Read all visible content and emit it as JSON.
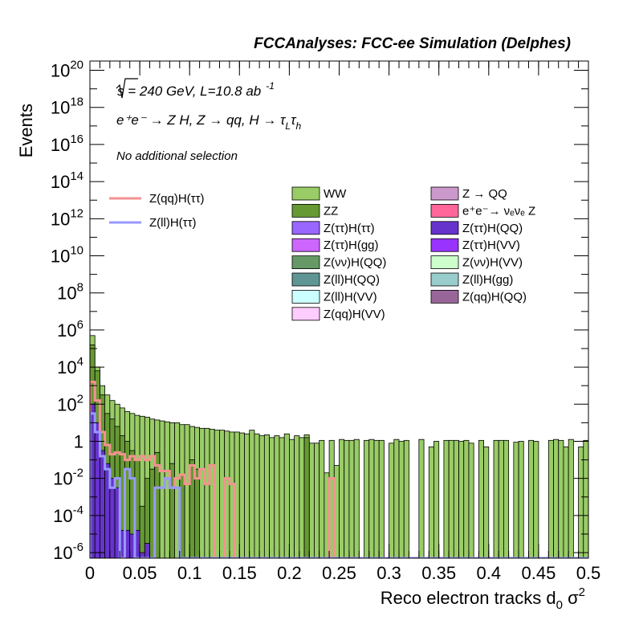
{
  "chart_data": {
    "type": "histogram",
    "title": "FCCAnalyses: FCC-ee Simulation (Delphes)",
    "annotations": {
      "energy_prefix": "s",
      "energy_text": " = 240 GeV, L=10.8 ab",
      "lumi_exp": "-1",
      "process_text": "e⁺e⁻ → Z H, Z → qq, H → τ",
      "process_sub1": "L",
      "process_mid": "τ",
      "process_sub2": "h",
      "selection": "No additional selection"
    },
    "xlabel": "Reco electron tracks d",
    "xlabel_sub": "0",
    "xlabel_tail": " σ",
    "xlabel_sup": "2",
    "ylabel": "Events",
    "xlim": [
      0,
      0.5
    ],
    "ylog_range": [
      -6.3,
      20.5
    ],
    "y_scale": "log",
    "x_ticks": [
      "0",
      "0.05",
      "0.1",
      "0.15",
      "0.2",
      "0.25",
      "0.3",
      "0.35",
      "0.4",
      "0.45",
      "0.5"
    ],
    "y_tick_exponents": [
      -6,
      -4,
      -2,
      0,
      2,
      4,
      6,
      8,
      10,
      12,
      14,
      16,
      18,
      20
    ],
    "legend_placement": "top-right",
    "signal_legend": [
      {
        "name": "Z(qq)H(ττ)",
        "color": "#f59191"
      },
      {
        "name": "Z(ll)H(ττ)",
        "color": "#9999ff"
      }
    ],
    "background_legend_col1": [
      {
        "name": "WW",
        "color": "#99cc66"
      },
      {
        "name": "ZZ",
        "color": "#669933"
      },
      {
        "name": "Z(ττ)H(ττ)",
        "color": "#9966ff"
      },
      {
        "name": "Z(ττ)H(gg)",
        "color": "#cc66ff"
      },
      {
        "name": "Z(νν)H(QQ)",
        "color": "#669966"
      },
      {
        "name": "Z(ll)H(QQ)",
        "color": "#5f9595"
      },
      {
        "name": "Z(ll)H(VV)",
        "color": "#ccffff"
      },
      {
        "name": "Z(qq)H(VV)",
        "color": "#ffccff"
      }
    ],
    "background_legend_col2": [
      {
        "name": "Z → QQ",
        "color": "#cc99cc"
      },
      {
        "name": "e⁺e⁻→ νₑνₑ Z",
        "color": "#ff6699"
      },
      {
        "name": "Z(ττ)H(QQ)",
        "color": "#6633cc"
      },
      {
        "name": "Z(ττ)H(VV)",
        "color": "#9933ff"
      },
      {
        "name": "Z(νν)H(VV)",
        "color": "#ccffcc"
      },
      {
        "name": "Z(ll)H(gg)",
        "color": "#99cccc"
      },
      {
        "name": "Z(qq)H(QQ)",
        "color": "#996699"
      }
    ],
    "bin_width": 0.005,
    "ww_log10_values": [
      5.7,
      4.0,
      3.0,
      2.5,
      2.2,
      2.0,
      1.8,
      1.6,
      1.5,
      1.4,
      1.35,
      1.3,
      1.2,
      1.15,
      1.1,
      1.05,
      1.0,
      1.0,
      0.9,
      0.9,
      0.8,
      0.75,
      0.7,
      0.7,
      0.65,
      0.6,
      0.6,
      0.55,
      0.5,
      0.5,
      0.45,
      0.4,
      0.6,
      0.4,
      0.3,
      0.35,
      0.2,
      0.3,
      0.2,
      0.4,
      0.1,
      0.3,
      0.2,
      0.35,
      -0.1,
      -0.1,
      0.05,
      -1.7,
      0.05,
      -1.3,
      0.1,
      0.05,
      0.05,
      0.1,
      -6.3,
      0.05,
      0.1,
      0.05,
      0.05,
      -6.3,
      -0.1,
      0.1,
      0.0,
      0.05,
      -6.3,
      -6.3,
      0.1,
      -6.3,
      -0.3,
      0.0,
      -6.3,
      0.05,
      0.05,
      0.05,
      0.0,
      0.05,
      -0.1,
      -6.3,
      0.05,
      -0.3,
      -6.3,
      0.05,
      0.05,
      0.05,
      -6.3,
      -0.05,
      0.0,
      -6.3,
      0.05,
      0.0,
      -6.3,
      -6.3,
      0.05,
      0.1,
      0.05,
      -0.3,
      0.1,
      -6.3,
      -0.3,
      0.05
    ],
    "zz_log10_values": [
      5.2,
      3.8,
      2.5,
      1.5,
      1.2,
      0.8,
      0.3,
      0.0,
      -0.5,
      -1.0,
      -3.5,
      -2.0,
      -1.5,
      -0.6,
      -6.3,
      -6.3,
      -1.2,
      -6.3,
      -1.8,
      -6.3,
      -1.0,
      -1.5,
      -6.3,
      -6.3,
      -6.3,
      -6.3,
      -6.3,
      -6.3,
      -6.3,
      -6.3,
      -6.3,
      -6.3,
      -6.3,
      -6.3,
      -6.3,
      -6.3,
      -6.3,
      -6.3,
      -6.3,
      -6.3,
      -6.3,
      -6.3,
      -6.3,
      0.2,
      -6.3,
      -6.3,
      -6.3,
      -6.3,
      -6.3,
      -6.3,
      -6.3,
      -6.3,
      -6.3,
      -6.3,
      -6.3,
      -6.3,
      -6.3,
      -6.3,
      -6.3,
      -6.3,
      -6.3,
      -6.3,
      -6.3,
      -6.3,
      -6.3,
      -6.3,
      -6.3,
      -6.3,
      -6.3,
      -6.3,
      -6.3,
      -6.3,
      -6.3,
      -6.3,
      -6.3,
      -6.3,
      -6.3,
      -6.3,
      -6.3,
      -6.3,
      -6.3,
      -6.3,
      -6.3,
      -6.3,
      -6.3,
      -6.3,
      -6.3,
      -6.3,
      -6.3,
      -6.3,
      -6.3,
      -6.3,
      -6.3,
      -6.3,
      -6.3,
      -6.3,
      -6.3,
      -6.3,
      -6.3,
      -6.3
    ],
    "ztautau_hqq_log10_values": [
      2.0,
      1.0,
      -0.5,
      -1.2,
      -2.0,
      -2.5,
      -4.8,
      -4.8,
      -5.0,
      -4.8,
      -6.0,
      -5.5
    ],
    "zqq_htautau_log10_values": [
      3.2,
      2.2,
      0.5,
      -0.2,
      -0.7,
      -0.6,
      -0.7,
      -1.0,
      -0.8,
      -1.0,
      -0.8,
      -1.0,
      -0.8,
      -1.3,
      -1.6,
      -1.6,
      -2.5,
      -2.0,
      -1.8,
      -2.3,
      -1.3,
      -2.0,
      -1.5,
      -2.3,
      -1.3,
      -6.3,
      -6.3,
      -2.0,
      -2.3,
      -6.3,
      -6.3,
      -6.3,
      -6.3,
      -6.3,
      -6.3,
      -6.3,
      -6.3,
      -6.3,
      -6.3,
      -6.3,
      -6.3,
      -6.3,
      -6.3,
      -6.3,
      -6.3,
      -6.3,
      -6.3,
      -6.3,
      -2.0,
      -6.3,
      -6.3,
      -6.3,
      -6.3,
      -6.3,
      -6.3,
      -6.3,
      -6.3,
      -6.3,
      -6.3,
      -6.3,
      -6.3,
      -6.3,
      -6.3,
      -6.3,
      -6.3,
      -6.3,
      -6.3,
      -6.3,
      -6.3,
      -6.3,
      -6.3,
      -6.3,
      -6.3,
      -6.3,
      -6.3,
      -6.3,
      -6.3,
      -6.3,
      -6.3,
      -6.3,
      -6.3,
      -6.3,
      -6.3,
      -6.3,
      -6.3,
      -6.3,
      -6.3,
      -6.3,
      -6.3,
      -6.3,
      -6.3,
      -6.3,
      -6.3,
      -6.3,
      -6.3,
      -6.3,
      -6.3,
      -6.3,
      -6.3,
      -6.3
    ],
    "zll_htautau_log10_values": [
      1.5,
      0.5,
      -0.8,
      -1.5,
      -2.5,
      -2.0,
      -6.3,
      -1.5,
      -2.0,
      -6.3,
      -6.3,
      -6.3,
      -6.3,
      -2.5,
      -2.5,
      -2.0,
      -2.5,
      -2.5,
      -6.3,
      -6.3,
      -6.3,
      -6.3,
      -6.3,
      -6.3,
      -6.3,
      -6.3,
      -6.3,
      -6.3,
      -6.3,
      -6.3,
      -6.3,
      -6.3,
      -6.3,
      -6.3,
      -6.3,
      -6.3,
      -6.3,
      -6.3,
      -6.3,
      -6.3,
      -6.3,
      -6.3,
      -6.3,
      -6.3,
      -6.3,
      -6.3,
      -6.3,
      -6.3,
      -6.3,
      -6.3,
      -6.3,
      -6.3,
      -6.3,
      -6.3,
      -6.3,
      -6.3,
      -6.3,
      -6.3,
      -6.3,
      -6.3,
      -6.3,
      -6.3,
      -6.3,
      -6.3,
      -6.3,
      -6.3,
      -6.3,
      -6.3,
      -6.3,
      -6.3,
      -6.3,
      -6.3,
      -6.3,
      -6.3,
      -6.3,
      -6.3,
      -6.3,
      -6.3,
      -6.3,
      -6.3,
      -6.3,
      -6.3,
      -6.3,
      -6.3,
      -6.3,
      -6.3,
      -6.3,
      -6.3,
      -6.3,
      -6.3,
      -6.3,
      -6.3,
      -6.3,
      -6.3,
      -6.3,
      -6.3,
      -6.3,
      -6.3,
      -6.3,
      -6.3
    ]
  }
}
